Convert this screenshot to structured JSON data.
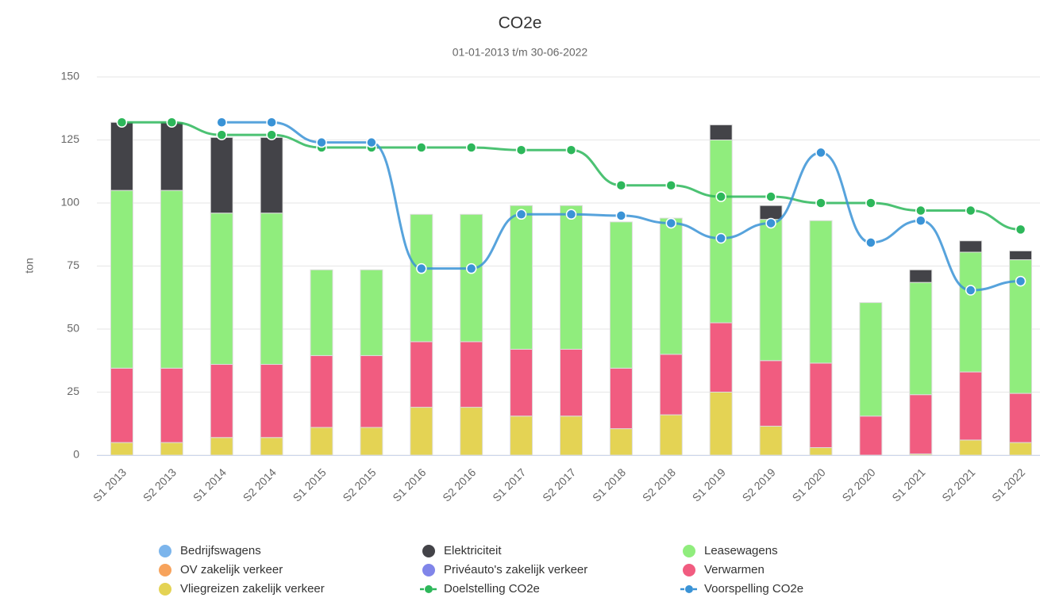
{
  "chart_data": {
    "type": "column",
    "title": "CO2e",
    "subtitle": "01-01-2013 t/m 30-06-2022",
    "y_label": "ton",
    "categories": [
      "S1 2013",
      "S2 2013",
      "S1 2014",
      "S2 2014",
      "S1 2015",
      "S2 2015",
      "S1 2016",
      "S2 2016",
      "S1 2017",
      "S2 2017",
      "S1 2018",
      "S2 2018",
      "S1 2019",
      "S2 2019",
      "S1 2020",
      "S2 2020",
      "S1 2021",
      "S2 2021",
      "S1 2022"
    ],
    "ylim": [
      0,
      150
    ],
    "yticks": [
      0,
      25,
      50,
      75,
      100,
      125,
      150
    ],
    "grid": true,
    "series": [
      {
        "name": "Bedrijfswagens",
        "color": "#7cb5ec",
        "values": [
          0,
          0,
          0,
          0,
          0,
          0,
          0,
          0,
          0,
          0,
          0,
          0,
          0,
          0,
          0,
          0,
          0,
          0,
          0
        ]
      },
      {
        "name": "Elektriciteit",
        "color": "#434348",
        "values": [
          27,
          27,
          30,
          30,
          0,
          0,
          0,
          0,
          0,
          0,
          0,
          0,
          6,
          5.5,
          0,
          0,
          5,
          4.5,
          3.5
        ]
      },
      {
        "name": "Leasewagens",
        "color": "#90ed7d",
        "values": [
          70.5,
          70.5,
          60,
          60,
          34,
          34,
          50.5,
          50.5,
          57,
          57,
          58,
          54,
          72.5,
          56,
          56.5,
          45,
          44.5,
          47.5,
          53
        ]
      },
      {
        "name": "OV zakelijk verkeer",
        "color": "#f7a35c",
        "values": [
          0,
          0,
          0,
          0,
          0,
          0,
          0,
          0,
          0,
          0,
          0,
          0,
          0,
          0,
          0,
          0,
          0,
          0,
          0
        ]
      },
      {
        "name": "Privéauto's zakelijk verkeer",
        "color": "#8085e9",
        "values": [
          0,
          0,
          0,
          0,
          0,
          0,
          0,
          0,
          0,
          0,
          0,
          0,
          0,
          0,
          0,
          0,
          0,
          0,
          0
        ]
      },
      {
        "name": "Verwarmen",
        "color": "#f15c80",
        "values": [
          29.5,
          29.5,
          29,
          29,
          28.5,
          28.5,
          26,
          26,
          26.5,
          26.5,
          24,
          24,
          27.5,
          26,
          33.5,
          15.5,
          23.5,
          27,
          19.5
        ]
      },
      {
        "name": "Vliegreizen zakelijk verkeer",
        "color": "#e4d354",
        "values": [
          5,
          5,
          7,
          7,
          11,
          11,
          19,
          19,
          15.5,
          15.5,
          10.5,
          16,
          25,
          11.5,
          3,
          0,
          0.5,
          6,
          5
        ]
      },
      {
        "name": "Doelstelling CO2e",
        "type": "line",
        "color": "#2db75a",
        "values": [
          132,
          132,
          127,
          127,
          122,
          122,
          122,
          122,
          121,
          121,
          107,
          107,
          102.5,
          102.5,
          100,
          100,
          97,
          97,
          89.5
        ]
      },
      {
        "name": "Voorspelling CO2e",
        "type": "line",
        "color": "#3a93d6",
        "values": [
          null,
          null,
          132,
          132,
          124,
          124,
          74,
          74,
          95.5,
          95.5,
          95,
          92,
          86,
          92,
          120,
          84.3,
          93,
          65.4,
          69
        ]
      }
    ]
  }
}
